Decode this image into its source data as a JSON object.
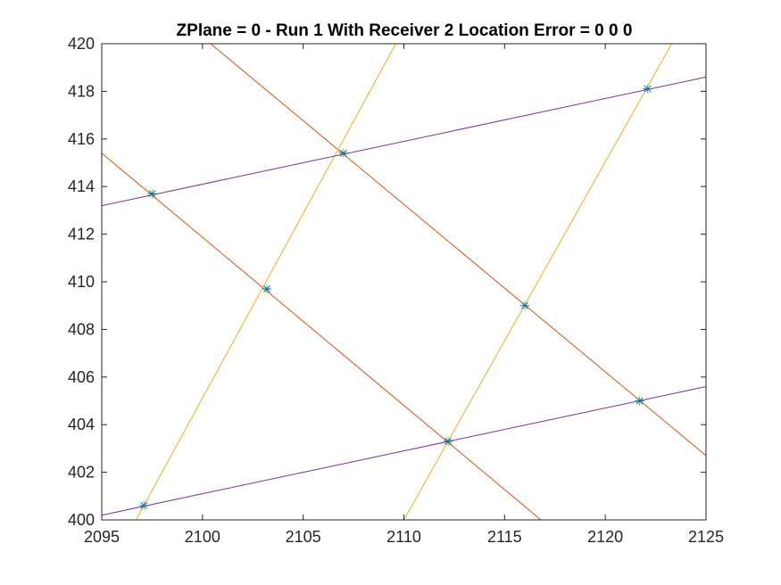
{
  "chart_data": {
    "type": "line",
    "title": "ZPlane = 0 - Run 1 With Receiver 2 Location Error = 0  0  0",
    "xlabel": "",
    "ylabel": "",
    "xlim": [
      2095,
      2125
    ],
    "ylim": [
      400,
      420
    ],
    "grid": false,
    "legend": "none",
    "x_ticks": [
      "2095",
      "2100",
      "2105",
      "2110",
      "2115",
      "2120",
      "2125"
    ],
    "y_ticks": [
      "400",
      "402",
      "404",
      "406",
      "408",
      "410",
      "412",
      "414",
      "416",
      "418",
      "420"
    ],
    "series": [
      {
        "color": "#D95319",
        "points": [
          [
            2095,
            415.4
          ],
          [
            2116.8,
            400
          ]
        ]
      },
      {
        "color": "#D95319",
        "points": [
          [
            2100.4,
            420
          ],
          [
            2125,
            402.7
          ]
        ]
      },
      {
        "color": "#EDB120",
        "points": [
          [
            2096.7,
            400
          ],
          [
            2109.6,
            420
          ]
        ]
      },
      {
        "color": "#EDB120",
        "points": [
          [
            2110,
            400
          ],
          [
            2123.3,
            420
          ]
        ]
      },
      {
        "color": "#7E2F8E",
        "points": [
          [
            2095,
            413.2
          ],
          [
            2125,
            418.6
          ]
        ]
      },
      {
        "color": "#7E2F8E",
        "points": [
          [
            2095,
            400.2
          ],
          [
            2125,
            405.6
          ]
        ]
      }
    ],
    "markers": {
      "symbol": "*",
      "colors": [
        "#0072BD",
        "#77AC30"
      ],
      "points": [
        [
          2097.5,
          413.7
        ],
        [
          2107.0,
          415.4
        ],
        [
          2122.1,
          418.1
        ],
        [
          2103.2,
          409.7
        ],
        [
          2116.0,
          409.0
        ],
        [
          2097.1,
          400.6
        ],
        [
          2112.2,
          403.3
        ],
        [
          2121.7,
          405.0
        ]
      ]
    }
  }
}
